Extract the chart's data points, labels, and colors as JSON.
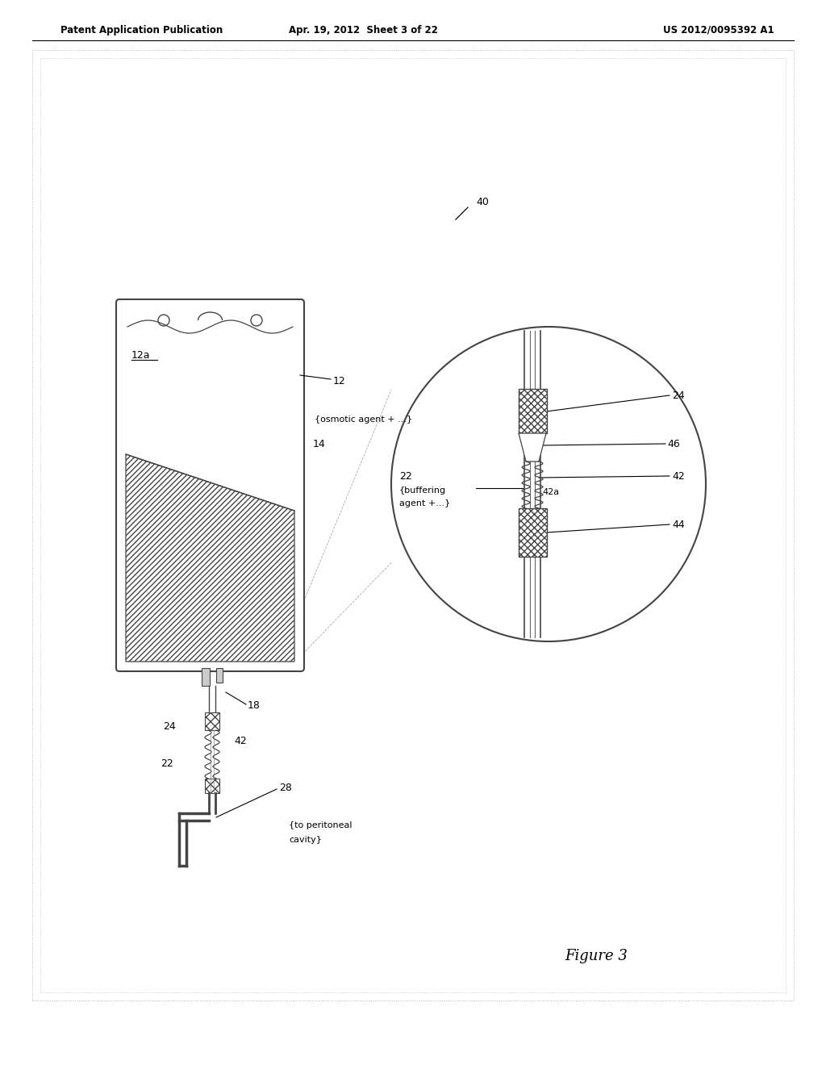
{
  "bg_color": "#ffffff",
  "header_left": "Patent Application Publication",
  "header_center": "Apr. 19, 2012  Sheet 3 of 22",
  "header_right": "US 2012/0095392 A1",
  "figure_label": "Figure 3"
}
